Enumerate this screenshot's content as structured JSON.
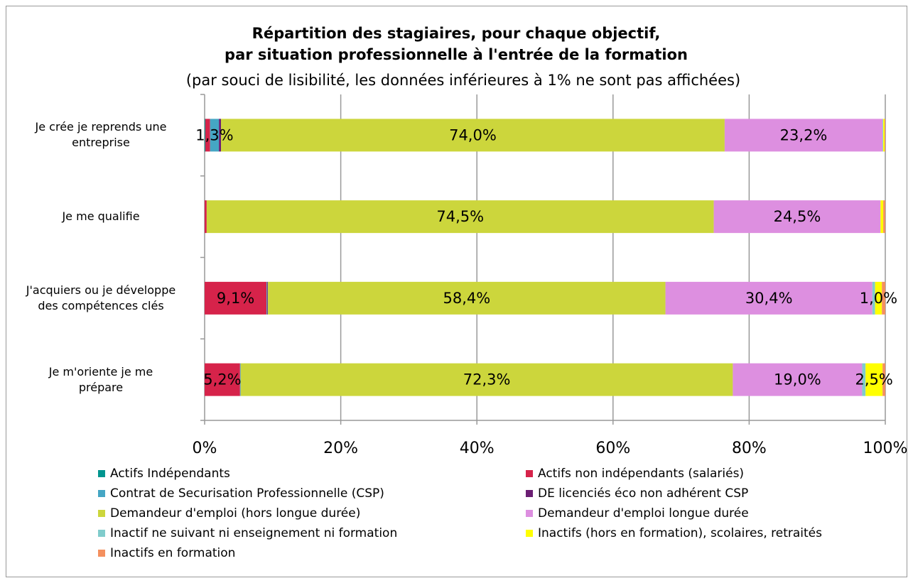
{
  "chart_data": {
    "type": "stacked-bar-horizontal",
    "title": [
      "Répartition des stagiaires, pour chaque objectif,",
      "par situation professionnelle à l'entrée de la formation"
    ],
    "subtitle": "(par souci de lisibilité, les données inférieures à 1% ne sont pas affichées)",
    "categories": [
      "Je crée je reprends une\nentreprise",
      "Je me qualifie",
      "J'acquiers ou je développe\ndes compétences clés",
      "Je m'oriente je me\nprépare"
    ],
    "xlim": [
      0,
      100
    ],
    "xticks": [
      {
        "value": 0,
        "label": "0%"
      },
      {
        "value": 20,
        "label": "20%"
      },
      {
        "value": 40,
        "label": "40%"
      },
      {
        "value": 60,
        "label": "60%"
      },
      {
        "value": 80,
        "label": "80%"
      },
      {
        "value": 100,
        "label": "100%"
      }
    ],
    "grid": true,
    "legend": "bottom",
    "series": [
      {
        "name": "Actifs Indépendants",
        "color": "#00958f",
        "values": [
          0.1,
          0,
          0,
          0
        ],
        "value_labels": [
          null,
          null,
          null,
          null
        ]
      },
      {
        "name": "Actifs non indépendants (salariés)",
        "color": "#d6234a",
        "values": [
          0.7,
          0.3,
          9.1,
          5.2
        ],
        "value_labels": [
          null,
          null,
          "9,1%",
          "5,2%"
        ]
      },
      {
        "name": "Contrat de Securisation Professionnelle (CSP)",
        "color": "#45a6c4",
        "values": [
          1.3,
          0,
          0.1,
          0.1
        ],
        "value_labels": [
          "1,3%",
          null,
          null,
          null
        ]
      },
      {
        "name": "DE licenciés éco non adhérent CSP",
        "color": "#6b1e73",
        "values": [
          0.3,
          0,
          0.1,
          0
        ],
        "value_labels": [
          null,
          null,
          null,
          null
        ]
      },
      {
        "name": "Demandeur d'emploi (hors longue durée)",
        "color": "#ccd63c",
        "values": [
          74.0,
          74.5,
          58.4,
          72.3
        ],
        "value_labels": [
          "74,0%",
          "74,5%",
          "58,4%",
          "72,3%"
        ]
      },
      {
        "name": "Demandeur d'emploi longue durée",
        "color": "#dd8fe0",
        "values": [
          23.2,
          24.5,
          30.4,
          19.0
        ],
        "value_labels": [
          "23,2%",
          "24,5%",
          "30,4%",
          "19,0%"
        ]
      },
      {
        "name": "Inactif ne suivant ni enseignement ni formation",
        "color": "#80cccc",
        "values": [
          0.1,
          0,
          0.4,
          0.5
        ],
        "value_labels": [
          null,
          null,
          null,
          null
        ]
      },
      {
        "name": "Inactifs (hors en formation), scolaires, retraités",
        "color": "#ffff00",
        "values": [
          0.2,
          0.4,
          1.0,
          2.5
        ],
        "value_labels": [
          null,
          null,
          "1,0%",
          "2,5%"
        ]
      },
      {
        "name": "Inactifs en formation",
        "color": "#f4905f",
        "values": [
          0.1,
          0.3,
          0.5,
          0.4
        ],
        "value_labels": [
          null,
          null,
          null,
          null
        ]
      }
    ]
  }
}
